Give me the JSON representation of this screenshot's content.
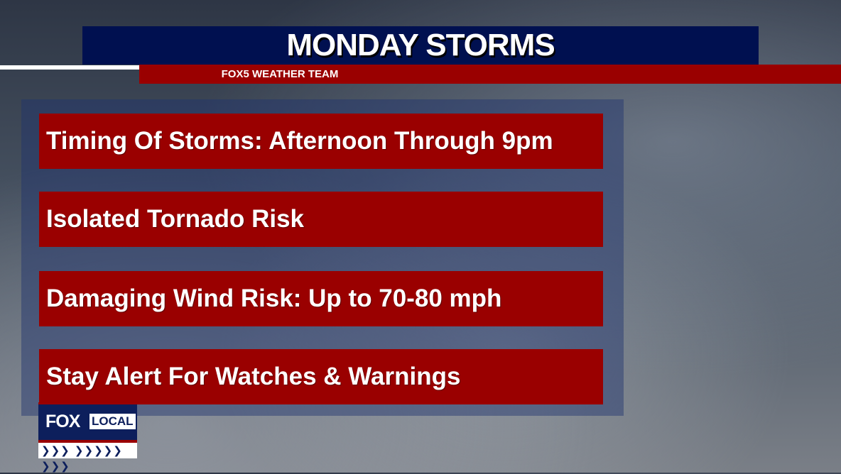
{
  "header": {
    "title": "MONDAY STORMS",
    "subtitle": "FOX5 WEATHER TEAM"
  },
  "items": [
    {
      "text": "Timing Of Storms: Afternoon Through 9pm"
    },
    {
      "text": "Isolated Tornado Risk"
    },
    {
      "text": "Damaging Wind Risk: Up to 70-80 mph"
    },
    {
      "text": "Stay Alert For Watches & Warnings"
    }
  ],
  "logo": {
    "brand": "FOX",
    "local": "LOCAL",
    "chevrons": "❯❯❯ ❯❯❯❯❯  ❯❯❯"
  },
  "colors": {
    "navy": "#001050",
    "red": "#9a0000"
  }
}
